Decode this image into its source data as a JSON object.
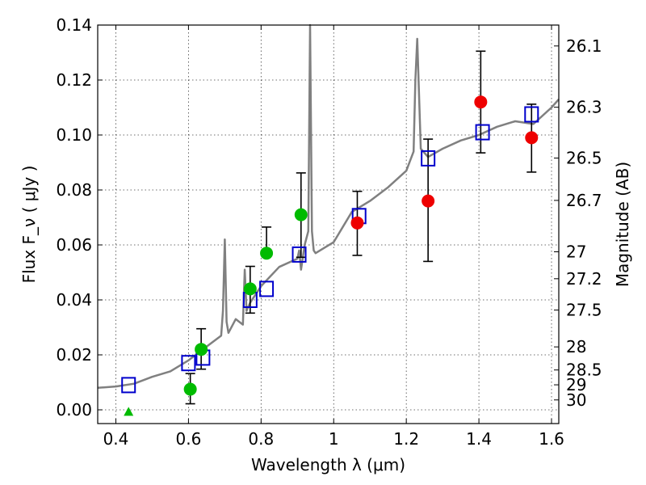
{
  "chart_data": {
    "type": "scatter",
    "xlabel": "Wavelength  λ (μm)",
    "ylabel": "Flux  F_ν  ( μJy )",
    "ylabel_right": "Magnitude (AB)",
    "xlim": [
      0.35,
      1.62
    ],
    "ylim": [
      -0.005,
      0.14
    ],
    "x_ticks": [
      0.4,
      0.6,
      0.8,
      1.0,
      1.2,
      1.4,
      1.6
    ],
    "x_tick_labels": [
      "0.4",
      "0.6",
      "0.8",
      "1",
      "1.2",
      "1.4",
      "1.6"
    ],
    "y_ticks": [
      0.0,
      0.02,
      0.04,
      0.06,
      0.08,
      0.1,
      0.12,
      0.14
    ],
    "y_tick_labels": [
      "0.00",
      "0.02",
      "0.04",
      "0.06",
      "0.08",
      "0.10",
      "0.12",
      "0.14"
    ],
    "right_ticks": [
      {
        "flux": 0.1324,
        "label": "26.1"
      },
      {
        "flux": 0.1101,
        "label": "26.3"
      },
      {
        "flux": 0.0916,
        "label": "26.5"
      },
      {
        "flux": 0.0762,
        "label": "26.7"
      },
      {
        "flux": 0.0575,
        "label": "27"
      },
      {
        "flux": 0.0477,
        "label": "27.2"
      },
      {
        "flux": 0.0363,
        "label": "27.5"
      },
      {
        "flux": 0.0229,
        "label": "28"
      },
      {
        "flux": 0.0145,
        "label": "28.5"
      },
      {
        "flux": 0.0091,
        "label": "29"
      },
      {
        "flux": 0.0036,
        "label": "30"
      }
    ],
    "grid": true,
    "model_spectrum": {
      "color": "#808080",
      "x": [
        0.35,
        0.4,
        0.45,
        0.5,
        0.55,
        0.6,
        0.65,
        0.69,
        0.695,
        0.7,
        0.705,
        0.71,
        0.73,
        0.75,
        0.755,
        0.76,
        0.77,
        0.8,
        0.85,
        0.9,
        0.905,
        0.91,
        0.92,
        0.93,
        0.935,
        0.94,
        0.945,
        0.95,
        1.0,
        1.05,
        1.1,
        1.15,
        1.2,
        1.22,
        1.225,
        1.23,
        1.235,
        1.24,
        1.26,
        1.3,
        1.35,
        1.4,
        1.45,
        1.5,
        1.55,
        1.6,
        1.62
      ],
      "y": [
        0.008,
        0.0085,
        0.0095,
        0.012,
        0.014,
        0.018,
        0.023,
        0.027,
        0.036,
        0.062,
        0.032,
        0.028,
        0.033,
        0.031,
        0.051,
        0.036,
        0.039,
        0.045,
        0.052,
        0.055,
        0.058,
        0.051,
        0.06,
        0.065,
        0.14,
        0.065,
        0.058,
        0.057,
        0.061,
        0.072,
        0.076,
        0.081,
        0.087,
        0.094,
        0.12,
        0.135,
        0.115,
        0.095,
        0.092,
        0.095,
        0.098,
        0.1,
        0.103,
        0.105,
        0.104,
        0.11,
        0.113
      ]
    },
    "series": [
      {
        "marker": "square",
        "color": "#0000cc",
        "x": [
          0.435,
          0.6,
          0.64,
          0.77,
          0.815,
          0.905,
          1.07,
          1.26,
          1.41,
          1.545
        ],
        "y": [
          0.009,
          0.017,
          0.019,
          0.04,
          0.044,
          0.0565,
          0.0705,
          0.0915,
          0.101,
          0.1075
        ]
      },
      {
        "marker": "circle",
        "color": "#00bb00",
        "x": [
          0.605,
          0.635,
          0.77,
          0.815,
          0.91
        ],
        "y": [
          0.0075,
          0.022,
          0.044,
          0.057,
          0.071
        ],
        "err_low": [
          0.0022,
          0.0148,
          0.0352,
          null,
          0.0555
        ],
        "err_high": [
          0.0132,
          0.0295,
          0.0522,
          0.0665,
          0.0862
        ]
      },
      {
        "marker": "circle",
        "color": "#ee0000",
        "x": [
          1.065,
          1.26,
          1.405,
          1.545
        ],
        "y": [
          0.068,
          0.076,
          0.112,
          0.099
        ],
        "err_low": [
          0.0562,
          0.054,
          0.0935,
          0.0865
        ],
        "err_high": [
          0.0795,
          0.0985,
          0.1305,
          0.1112
        ]
      },
      {
        "marker": "triangle",
        "color": "#00bb00",
        "x": [
          0.435
        ],
        "y": [
          -0.001
        ]
      }
    ]
  }
}
